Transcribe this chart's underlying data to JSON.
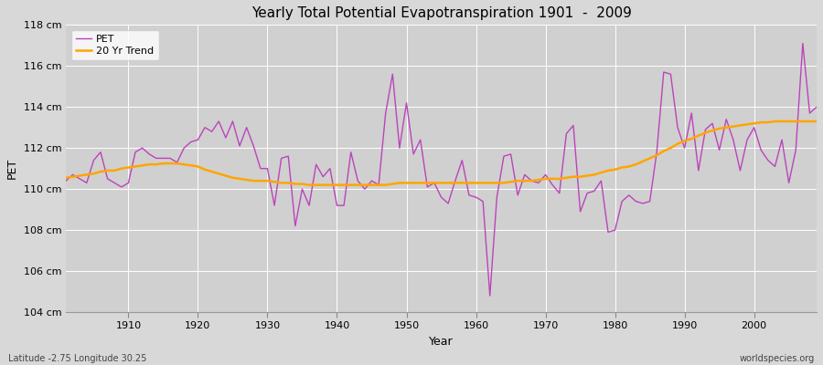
{
  "title": "Yearly Total Potential Evapotranspiration 1901  -  2009",
  "ylabel": "PET",
  "xlabel": "Year",
  "footer_left": "Latitude -2.75 Longitude 30.25",
  "footer_right": "worldspecies.org",
  "pet_color": "#bb44bb",
  "trend_color": "#ffa500",
  "fig_bg_color": "#d8d8d8",
  "plot_bg_color": "#d0d0d0",
  "ylim": [
    104,
    118
  ],
  "ytick_labels": [
    "104 cm",
    "106 cm",
    "108 cm",
    "110 cm",
    "112 cm",
    "114 cm",
    "116 cm",
    "118 cm"
  ],
  "ytick_values": [
    104,
    106,
    108,
    110,
    112,
    114,
    116,
    118
  ],
  "years": [
    1901,
    1902,
    1903,
    1904,
    1905,
    1906,
    1907,
    1908,
    1909,
    1910,
    1911,
    1912,
    1913,
    1914,
    1915,
    1916,
    1917,
    1918,
    1919,
    1920,
    1921,
    1922,
    1923,
    1924,
    1925,
    1926,
    1927,
    1928,
    1929,
    1930,
    1931,
    1932,
    1933,
    1934,
    1935,
    1936,
    1937,
    1938,
    1939,
    1940,
    1941,
    1942,
    1943,
    1944,
    1945,
    1946,
    1947,
    1948,
    1949,
    1950,
    1951,
    1952,
    1953,
    1954,
    1955,
    1956,
    1957,
    1958,
    1959,
    1960,
    1961,
    1962,
    1963,
    1964,
    1965,
    1966,
    1967,
    1968,
    1969,
    1970,
    1971,
    1972,
    1973,
    1974,
    1975,
    1976,
    1977,
    1978,
    1979,
    1980,
    1981,
    1982,
    1983,
    1984,
    1985,
    1986,
    1987,
    1988,
    1989,
    1990,
    1991,
    1992,
    1993,
    1994,
    1995,
    1996,
    1997,
    1998,
    1999,
    2000,
    2001,
    2002,
    2003,
    2004,
    2005,
    2006,
    2007,
    2008,
    2009
  ],
  "pet_values": [
    110.4,
    110.7,
    110.5,
    110.3,
    111.4,
    111.8,
    110.5,
    110.3,
    110.1,
    110.3,
    111.8,
    112.0,
    111.7,
    111.5,
    111.5,
    111.5,
    111.3,
    112.0,
    112.3,
    112.4,
    113.0,
    112.8,
    113.3,
    112.5,
    113.3,
    112.1,
    113.0,
    112.1,
    111.0,
    111.0,
    109.2,
    111.5,
    111.6,
    108.2,
    110.0,
    109.2,
    111.2,
    110.6,
    111.0,
    109.2,
    109.2,
    111.8,
    110.4,
    110.0,
    110.4,
    110.2,
    113.7,
    115.6,
    112.0,
    114.2,
    111.7,
    112.4,
    110.1,
    110.3,
    109.6,
    109.3,
    110.4,
    111.4,
    109.7,
    109.6,
    109.4,
    104.8,
    109.6,
    111.6,
    111.7,
    109.7,
    110.7,
    110.4,
    110.3,
    110.7,
    110.2,
    109.8,
    112.7,
    113.1,
    108.9,
    109.8,
    109.9,
    110.4,
    107.9,
    108.0,
    109.4,
    109.7,
    109.4,
    109.3,
    109.4,
    111.8,
    115.7,
    115.6,
    113.0,
    112.0,
    113.7,
    110.9,
    112.9,
    113.2,
    111.9,
    113.4,
    112.4,
    110.9,
    112.4,
    113.0,
    111.9,
    111.4,
    111.1,
    112.4,
    110.3,
    111.9,
    117.1,
    113.7,
    114.0
  ],
  "trend_values": [
    110.55,
    110.6,
    110.65,
    110.7,
    110.75,
    110.85,
    110.9,
    110.9,
    111.0,
    111.05,
    111.1,
    111.15,
    111.2,
    111.2,
    111.25,
    111.25,
    111.25,
    111.2,
    111.15,
    111.1,
    110.95,
    110.85,
    110.75,
    110.65,
    110.55,
    110.5,
    110.45,
    110.4,
    110.4,
    110.4,
    110.35,
    110.3,
    110.3,
    110.25,
    110.25,
    110.2,
    110.2,
    110.2,
    110.2,
    110.2,
    110.2,
    110.2,
    110.2,
    110.2,
    110.2,
    110.2,
    110.2,
    110.25,
    110.3,
    110.3,
    110.3,
    110.3,
    110.3,
    110.3,
    110.3,
    110.3,
    110.3,
    110.3,
    110.3,
    110.3,
    110.3,
    110.3,
    110.3,
    110.3,
    110.35,
    110.4,
    110.4,
    110.4,
    110.45,
    110.5,
    110.5,
    110.5,
    110.55,
    110.6,
    110.6,
    110.65,
    110.7,
    110.8,
    110.9,
    110.95,
    111.05,
    111.1,
    111.2,
    111.35,
    111.5,
    111.65,
    111.85,
    112.0,
    112.2,
    112.35,
    112.45,
    112.6,
    112.75,
    112.85,
    112.95,
    113.0,
    113.05,
    113.1,
    113.15,
    113.2,
    113.25,
    113.25,
    113.3,
    113.3,
    113.3,
    113.3,
    113.3,
    113.3,
    113.3
  ]
}
